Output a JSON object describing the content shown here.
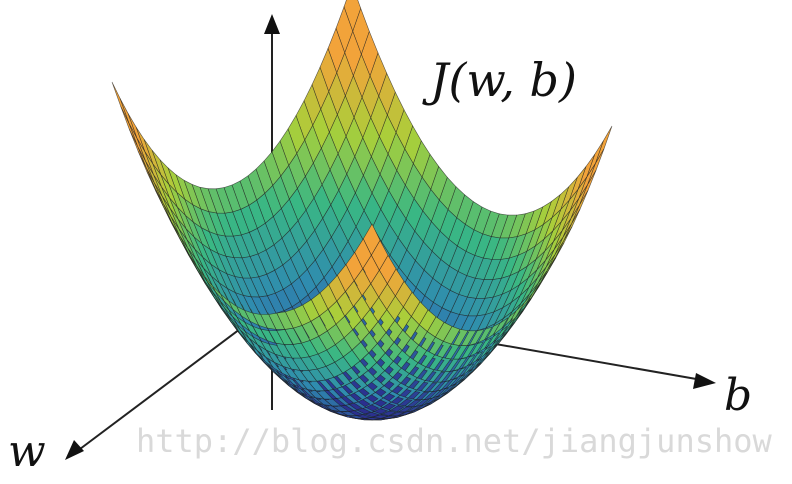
{
  "figure": {
    "cost_label": "J(w, b)",
    "w_label": "w",
    "b_label": "b",
    "watermark": "http://blog.csdn.net/jiangjunshow"
  },
  "surface": {
    "type": "paraboloid-surface",
    "colors": {
      "low": "#2b2f8f",
      "mid_low": "#2f8bb0",
      "mid": "#39b784",
      "mid_high": "#a9cf3a",
      "high": "#f2a33a",
      "edge": "#1e1e1e"
    }
  },
  "icons": {
    "cost_axis_arrow": "arrow-up-icon",
    "w_axis_arrow": "arrow-down-left-icon",
    "b_axis_arrow": "arrow-right-icon"
  }
}
